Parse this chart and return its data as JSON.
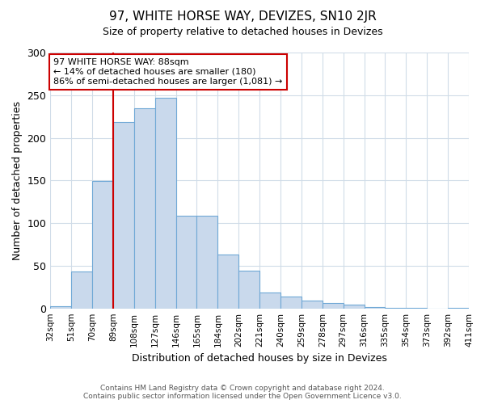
{
  "title": "97, WHITE HORSE WAY, DEVIZES, SN10 2JR",
  "subtitle": "Size of property relative to detached houses in Devizes",
  "xlabel": "Distribution of detached houses by size in Devizes",
  "ylabel": "Number of detached properties",
  "bin_labels": [
    "32sqm",
    "51sqm",
    "70sqm",
    "89sqm",
    "108sqm",
    "127sqm",
    "146sqm",
    "165sqm",
    "184sqm",
    "202sqm",
    "221sqm",
    "240sqm",
    "259sqm",
    "278sqm",
    "297sqm",
    "316sqm",
    "335sqm",
    "354sqm",
    "373sqm",
    "392sqm",
    "411sqm"
  ],
  "bar_heights": [
    3,
    43,
    149,
    219,
    235,
    247,
    109,
    109,
    63,
    44,
    19,
    14,
    9,
    6,
    4,
    2,
    1,
    1,
    0,
    1
  ],
  "bar_color": "#c9d9ec",
  "bar_edge_color": "#6fa8d6",
  "vline_x": 3,
  "vline_color": "#cc0000",
  "annotation_line1": "97 WHITE HORSE WAY: 88sqm",
  "annotation_line2": "← 14% of detached houses are smaller (180)",
  "annotation_line3": "86% of semi-detached houses are larger (1,081) →",
  "annotation_box_edge": "#cc0000",
  "ylim": [
    0,
    300
  ],
  "yticks": [
    0,
    50,
    100,
    150,
    200,
    250,
    300
  ],
  "footer_line1": "Contains HM Land Registry data © Crown copyright and database right 2024.",
  "footer_line2": "Contains public sector information licensed under the Open Government Licence v3.0.",
  "background_color": "#ffffff",
  "grid_color": "#d0dce8"
}
